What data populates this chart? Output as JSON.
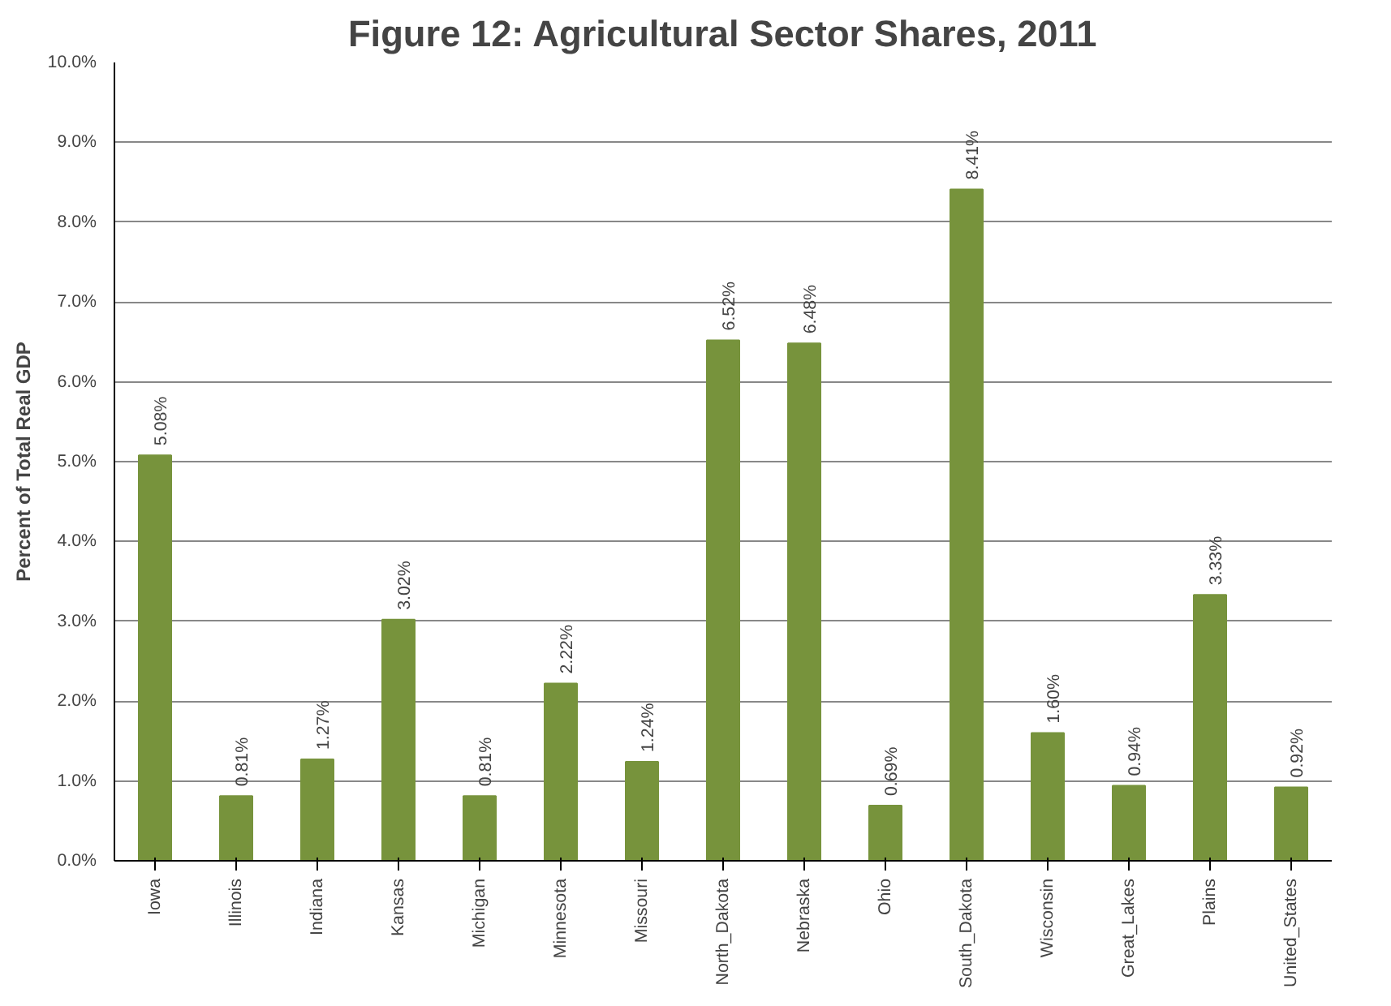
{
  "chart_data": {
    "type": "bar",
    "title": "Figure 12: Agricultural Sector Shares, 2011",
    "ylabel": "Percent of Total Real GDP",
    "categories": [
      "Iowa",
      "Illinois",
      "Indiana",
      "Kansas",
      "Michigan",
      "Minnesota",
      "Missouri",
      "North_Dakota",
      "Nebraska",
      "Ohio",
      "South_Dakota",
      "Wisconsin",
      "Great_Lakes",
      "Plains",
      "United_States"
    ],
    "values": [
      5.08,
      0.81,
      1.27,
      3.02,
      0.81,
      2.22,
      1.24,
      6.52,
      6.48,
      0.69,
      8.41,
      1.6,
      0.94,
      3.33,
      0.92
    ],
    "value_labels": [
      "5.08%",
      "0.81%",
      "1.27%",
      "3.02%",
      "0.81%",
      "2.22%",
      "1.24%",
      "6.52%",
      "6.48%",
      "0.69%",
      "8.41%",
      "1.60%",
      "0.94%",
      "3.33%",
      "0.92%"
    ],
    "color": "#77933c",
    "ylim": [
      0,
      10
    ],
    "yticks": [
      {
        "value": 0,
        "label": "0.0%"
      },
      {
        "value": 1,
        "label": "1.0%"
      },
      {
        "value": 2,
        "label": "2.0%"
      },
      {
        "value": 3,
        "label": "3.0%"
      },
      {
        "value": 4,
        "label": "4.0%"
      },
      {
        "value": 5,
        "label": "5.0%"
      },
      {
        "value": 6,
        "label": "6.0%"
      },
      {
        "value": 7,
        "label": "7.0%"
      },
      {
        "value": 8,
        "label": "8.0%"
      },
      {
        "value": 9,
        "label": "9.0%"
      },
      {
        "value": 10,
        "label": "10.0%"
      }
    ],
    "grid": "y"
  }
}
